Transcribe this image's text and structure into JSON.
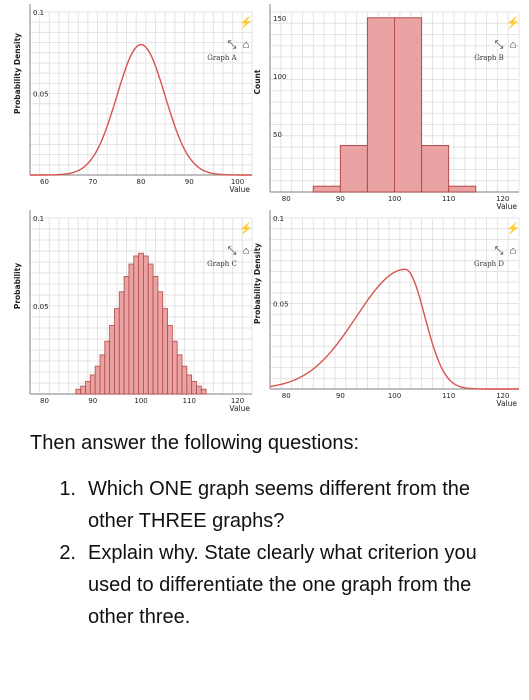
{
  "chart_data": [
    {
      "id": "a",
      "type": "line",
      "graph_label": "Graph A",
      "ylabel": "Probability Density",
      "xlabel": "Value",
      "x_ticks": [
        "60",
        "70",
        "80",
        "90",
        "100"
      ],
      "y_ticks": [
        "0.05",
        "0.1"
      ],
      "xlim": [
        57,
        103
      ],
      "ylim": [
        0,
        0.1
      ],
      "curve": {
        "kind": "normal",
        "mean": 80,
        "sd": 5,
        "peak": 0.08
      },
      "grid": true,
      "colors": {
        "line": "#d9534f",
        "grid": "#e3e3e3"
      },
      "icons": [
        "expand-icon",
        "home-icon",
        "lightning-icon"
      ]
    },
    {
      "id": "b",
      "type": "bar",
      "graph_label": "Graph B",
      "ylabel": "Count",
      "xlabel": "Value",
      "x_ticks": [
        "80",
        "90",
        "100",
        "110",
        "120"
      ],
      "y_ticks": [
        "50",
        "100",
        "150"
      ],
      "xlim": [
        77,
        123
      ],
      "ylim": [
        0,
        155
      ],
      "bins": [
        {
          "x0": 85,
          "x1": 90,
          "value": 5
        },
        {
          "x0": 90,
          "x1": 95,
          "value": 40
        },
        {
          "x0": 95,
          "x1": 100,
          "value": 150
        },
        {
          "x0": 100,
          "x1": 105,
          "value": 150
        },
        {
          "x0": 105,
          "x1": 110,
          "value": 40
        },
        {
          "x0": 110,
          "x1": 115,
          "value": 5
        }
      ],
      "grid": true,
      "colors": {
        "bar_fill": "#e9a3a3",
        "bar_stroke": "#b54a4a",
        "grid": "#e3e3e3"
      },
      "icons": [
        "expand-icon",
        "home-icon",
        "lightning-icon"
      ]
    },
    {
      "id": "c",
      "type": "bar",
      "graph_label": "Graph C",
      "ylabel": "Probability",
      "xlabel": "Value",
      "x_ticks": [
        "80",
        "90",
        "100",
        "110",
        "120"
      ],
      "y_ticks": [
        "0.05",
        "0.1"
      ],
      "xlim": [
        77,
        123
      ],
      "ylim": [
        0,
        0.1
      ],
      "bins_distribution": {
        "kind": "binomial-like",
        "center": 100,
        "start": 87,
        "end": 113,
        "width": 1,
        "peak": 0.08,
        "sd": 5
      },
      "grid": true,
      "colors": {
        "bar_fill": "#e9a3a3",
        "bar_stroke": "#b54a4a",
        "grid": "#e3e3e3"
      },
      "icons": [
        "expand-icon",
        "home-icon",
        "lightning-icon"
      ]
    },
    {
      "id": "d",
      "type": "line",
      "graph_label": "Graph D",
      "ylabel": "Probability Density",
      "xlabel": "Value",
      "x_ticks": [
        "80",
        "90",
        "100",
        "110",
        "120"
      ],
      "y_ticks": [
        "0.05",
        "0.1"
      ],
      "xlim": [
        77,
        123
      ],
      "ylim": [
        0,
        0.1
      ],
      "curve": {
        "kind": "skew-left",
        "mode": 102,
        "peak": 0.07
      },
      "grid": true,
      "colors": {
        "line": "#d9534f",
        "grid": "#e3e3e3"
      },
      "icons": [
        "expand-icon",
        "home-icon",
        "lightning-icon"
      ]
    }
  ],
  "text": {
    "intro": "Then answer the following questions:",
    "questions": [
      {
        "number": "1.",
        "text": "Which ONE graph seems different from the other THREE graphs?"
      },
      {
        "number": "2.",
        "text": "Explain why. State clearly what criterion you used to differentiate the one graph from the other three."
      }
    ]
  }
}
